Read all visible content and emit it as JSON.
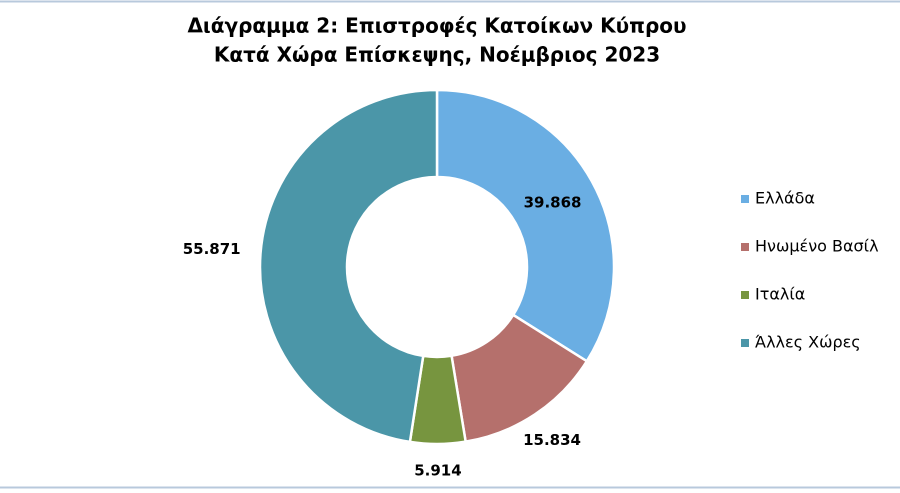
{
  "chart_data": {
    "type": "doughnut",
    "title": [
      "Διάγραμμα 2: Επιστροφές Κατοίκων Κύπρου",
      "Κατά Χώρα Επίσκεψης, Νοέμβριος 2023"
    ],
    "categories": [
      "Ελλάδα",
      "Ηνωμένο Βασίλ",
      "Ιταλία",
      "Άλλες Χώρες"
    ],
    "values": [
      39868,
      15834,
      5914,
      55871
    ],
    "value_labels": [
      "39.868",
      "15.834",
      "5.914",
      "55.871"
    ],
    "colors": [
      "#6aaee3",
      "#b5706c",
      "#77953f",
      "#4b96a8"
    ],
    "legend": "right"
  }
}
